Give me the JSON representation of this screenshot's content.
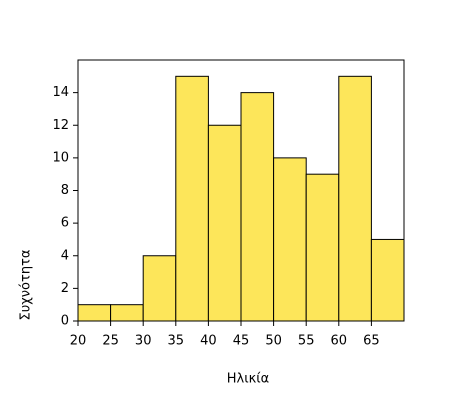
{
  "chart_data": {
    "type": "histogram",
    "bins": [
      20,
      25,
      30,
      35,
      40,
      45,
      50,
      55,
      60,
      65,
      70
    ],
    "values": [
      1,
      1,
      4,
      15,
      12,
      14,
      10,
      9,
      15,
      5
    ],
    "color": "#fde65a",
    "xlabel": "Ηλικία",
    "ylabel": "Συχνότητα",
    "xlim": [
      20,
      70
    ],
    "xticks": [
      20,
      25,
      30,
      35,
      40,
      45,
      50,
      55,
      60,
      65
    ],
    "ylim": [
      0,
      16
    ],
    "yticks": [
      0,
      2,
      4,
      6,
      8,
      10,
      12,
      14
    ]
  }
}
